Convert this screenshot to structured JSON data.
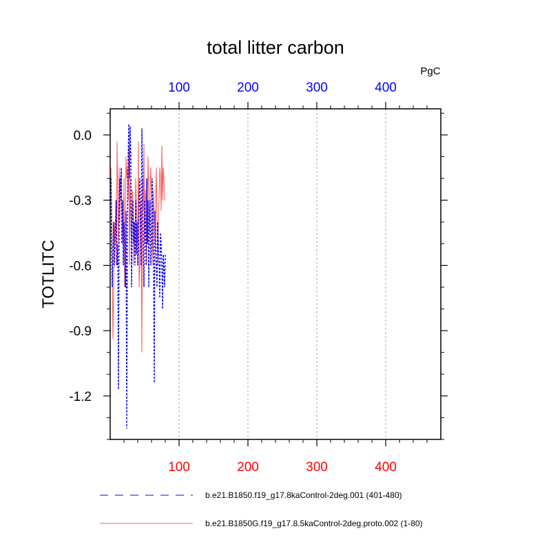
{
  "chart_data": {
    "type": "line",
    "title": "total litter carbon",
    "units_label": "PgC",
    "ylabel": "TOTLITC",
    "xlim": [
      0,
      480
    ],
    "ylim": [
      -1.4,
      0.12
    ],
    "xticks": [
      100,
      200,
      300,
      400
    ],
    "yticks": [
      0.0,
      -0.3,
      -0.6,
      -0.9,
      -1.2
    ],
    "ytick_labels": [
      "0.0",
      "-0.3",
      "-0.6",
      "-0.9",
      "-1.2"
    ],
    "top_axis_color": "#0000ff",
    "bottom_axis_color": "#ff0000",
    "grid": "vertical dotted at major x ticks",
    "legend_position": "bottom",
    "series": [
      {
        "name": "b.e21.B1850.f19_g17.8kaControl-2deg.001 (401-480)",
        "color": "#0000ff",
        "dash": "dashed",
        "x": [
          1,
          2,
          3,
          4,
          5,
          6,
          7,
          8,
          9,
          10,
          11,
          12,
          13,
          14,
          15,
          16,
          17,
          18,
          19,
          20,
          21,
          22,
          23,
          24,
          25,
          26,
          27,
          28,
          29,
          30,
          31,
          32,
          33,
          34,
          35,
          36,
          37,
          38,
          39,
          40,
          41,
          42,
          43,
          44,
          45,
          46,
          47,
          48,
          49,
          50,
          51,
          52,
          53,
          54,
          55,
          56,
          57,
          58,
          59,
          60,
          61,
          62,
          63,
          64,
          65,
          66,
          67,
          68,
          69,
          70,
          71,
          72,
          73,
          74,
          75,
          76,
          77,
          78,
          79,
          80
        ],
        "values": [
          -0.2,
          -0.5,
          -0.7,
          -0.55,
          -0.4,
          -0.6,
          -0.5,
          -0.4,
          -0.3,
          -0.6,
          -0.5,
          -1.17,
          -0.4,
          -0.2,
          -0.3,
          -0.15,
          -0.5,
          -0.3,
          -0.6,
          -0.4,
          -0.5,
          -0.7,
          -0.35,
          -1.35,
          -0.4,
          -0.1,
          0.05,
          -0.2,
          0.04,
          -0.1,
          -0.7,
          -0.4,
          -0.3,
          -0.5,
          -0.4,
          -0.6,
          -0.3,
          -0.55,
          -0.4,
          -0.6,
          -0.5,
          -0.3,
          -0.2,
          -0.4,
          -0.6,
          0.03,
          -0.2,
          -0.5,
          -0.7,
          -0.3,
          -0.4,
          -0.6,
          -0.2,
          -0.5,
          -0.3,
          -0.7,
          -0.4,
          -0.3,
          -0.6,
          -0.5,
          -0.2,
          -0.4,
          -0.6,
          -1.14,
          -0.35,
          -0.5,
          -0.6,
          -0.7,
          -0.4,
          -0.5,
          -0.6,
          -0.75,
          -0.45,
          -0.5,
          -0.6,
          -0.8,
          -0.55,
          -0.6,
          -0.7,
          -0.55
        ]
      },
      {
        "name": "b.e21.B1850G.f19_g17.8.5kaControl-2deg.proto.002 (1-80)",
        "color": "#ff5555",
        "dash": "solid",
        "x": [
          1,
          2,
          3,
          4,
          5,
          6,
          7,
          8,
          9,
          10,
          11,
          12,
          13,
          14,
          15,
          16,
          17,
          18,
          19,
          20,
          21,
          22,
          23,
          24,
          25,
          26,
          27,
          28,
          29,
          30,
          31,
          32,
          33,
          34,
          35,
          36,
          37,
          38,
          39,
          40,
          41,
          42,
          43,
          44,
          45,
          46,
          47,
          48,
          49,
          50,
          51,
          52,
          53,
          54,
          55,
          56,
          57,
          58,
          59,
          60,
          61,
          62,
          63,
          64,
          65,
          66,
          67,
          68,
          69,
          70,
          71,
          72,
          73,
          74,
          75,
          76,
          77,
          78,
          79,
          80
        ],
        "values": [
          -0.15,
          -0.3,
          -0.6,
          -0.94,
          -0.7,
          -0.4,
          -0.5,
          -0.3,
          -0.6,
          -0.03,
          -0.3,
          -0.5,
          -0.15,
          -0.4,
          -0.2,
          -0.15,
          -0.35,
          -0.4,
          -0.5,
          -0.2,
          -0.7,
          -0.4,
          -0.1,
          -0.2,
          -0.15,
          -0.3,
          -0.05,
          -0.6,
          -0.2,
          -0.4,
          -0.5,
          -0.25,
          -0.3,
          -0.6,
          -0.4,
          -0.55,
          -0.2,
          -0.3,
          -0.4,
          -0.5,
          -0.03,
          -0.7,
          -0.6,
          -0.3,
          -0.4,
          -1.0,
          -0.2,
          -0.35,
          -0.04,
          -0.5,
          -0.25,
          -0.3,
          -0.6,
          -0.35,
          -0.1,
          -0.3,
          -0.45,
          -0.25,
          -0.15,
          -0.3,
          -0.45,
          -0.6,
          -0.25,
          -0.4,
          -0.5,
          -0.3,
          -0.15,
          -0.45,
          -0.6,
          -0.35,
          -0.3,
          -0.15,
          -0.2,
          -0.35,
          -0.05,
          -0.3,
          -0.15,
          -0.2,
          -0.3,
          -0.3
        ]
      }
    ]
  }
}
